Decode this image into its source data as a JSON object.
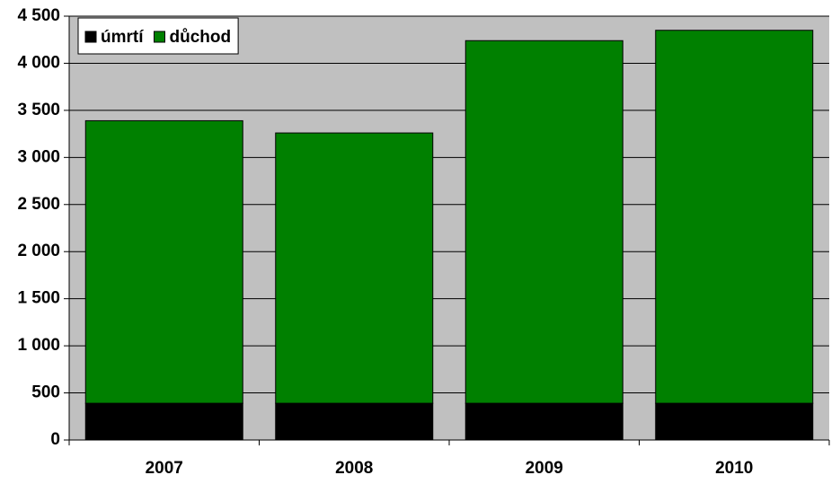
{
  "chart_data": {
    "type": "stacked_bar",
    "categories": [
      "2007",
      "2008",
      "2009",
      "2010"
    ],
    "series": [
      {
        "name": "úmrtí",
        "color": "#000000",
        "values": [
          390,
          390,
          390,
          390
        ]
      },
      {
        "name": "důchod",
        "color": "#008000",
        "values": [
          3000,
          2870,
          3850,
          3960
        ]
      }
    ],
    "ylim": [
      0,
      4500
    ],
    "yticks": [
      0,
      500,
      {
        "value": 1000,
        "label": "1 000"
      },
      {
        "value": 1500,
        "label": "1 500"
      },
      {
        "value": 2000,
        "label": "2 000"
      },
      {
        "value": 2500,
        "label": "2 500"
      },
      {
        "value": 3000,
        "label": "3 000"
      },
      {
        "value": 3500,
        "label": "3 500"
      },
      {
        "value": 4000,
        "label": "4 000"
      },
      {
        "value": 4500,
        "label": "4 500"
      }
    ],
    "grid": true,
    "legend": "top-left"
  }
}
